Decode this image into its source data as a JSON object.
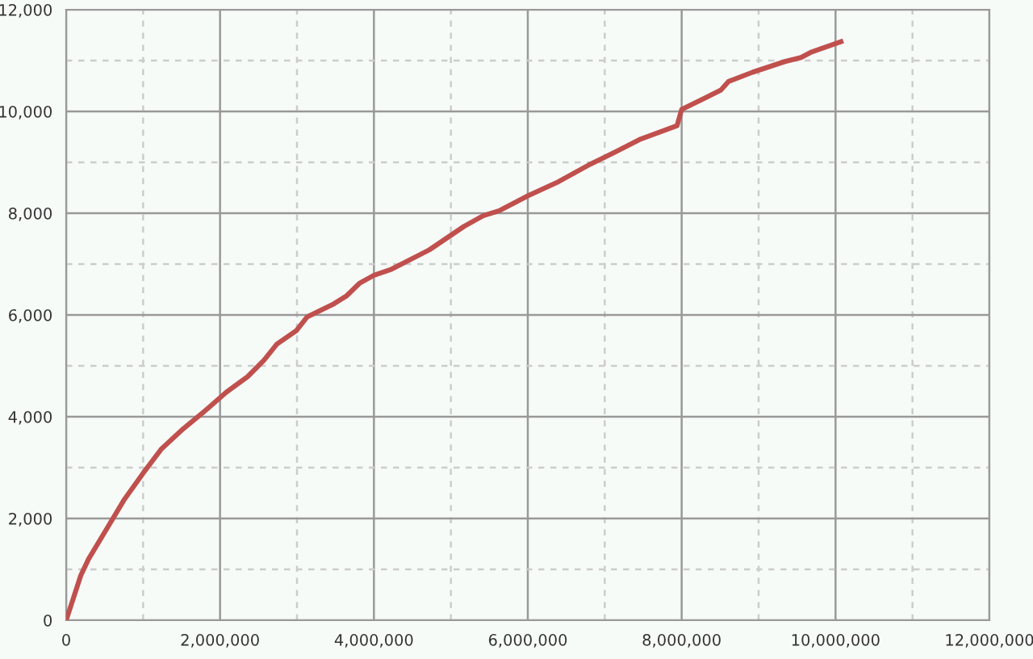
{
  "chart_data": {
    "type": "line",
    "color": "#c0504d",
    "grid": true,
    "marker": "none",
    "line_style": "solid",
    "x": [
      0,
      190000,
      290000,
      540000,
      750000,
      1000000,
      1240000,
      1520000,
      1800000,
      2080000,
      2360000,
      2570000,
      2740000,
      2990000,
      3130000,
      3480000,
      3640000,
      3810000,
      4000000,
      4230000,
      4720000,
      5170000,
      5420000,
      5630000,
      6000000,
      6400000,
      6820000,
      7120000,
      7470000,
      7940000,
      8000000,
      8300000,
      8510000,
      8610000,
      8920000,
      9340000,
      9550000,
      9690000,
      10070000
    ],
    "values": [
      0,
      880,
      1200,
      1830,
      2360,
      2890,
      3370,
      3760,
      4110,
      4480,
      4790,
      5110,
      5430,
      5690,
      5960,
      6220,
      6370,
      6620,
      6780,
      6900,
      7280,
      7740,
      7950,
      8050,
      8340,
      8620,
      8970,
      9190,
      9460,
      9720,
      10040,
      10260,
      10420,
      10590,
      10770,
      10980,
      11060,
      11170,
      11370
    ],
    "xlim": [
      0,
      12000000
    ],
    "ylim": [
      0,
      12000
    ],
    "xticks": [
      {
        "value": 0,
        "label": "0"
      },
      {
        "value": 1000000,
        "label": null
      },
      {
        "value": 2000000,
        "label": "2,000,000"
      },
      {
        "value": 3000000,
        "label": null
      },
      {
        "value": 4000000,
        "label": "4,000,000"
      },
      {
        "value": 5000000,
        "label": null
      },
      {
        "value": 6000000,
        "label": "6,000,000"
      },
      {
        "value": 7000000,
        "label": null
      },
      {
        "value": 8000000,
        "label": "8,000,000"
      },
      {
        "value": 9000000,
        "label": null
      },
      {
        "value": 10000000,
        "label": "10,000,000"
      },
      {
        "value": 11000000,
        "label": null
      },
      {
        "value": 12000000,
        "label": "12,000,000"
      }
    ],
    "yticks": [
      {
        "value": 0,
        "label": "0"
      },
      {
        "value": 1000,
        "label": null
      },
      {
        "value": 2000,
        "label": "2,000"
      },
      {
        "value": 3000,
        "label": null
      },
      {
        "value": 4000,
        "label": "4,000"
      },
      {
        "value": 5000,
        "label": null
      },
      {
        "value": 6000,
        "label": "6,000"
      },
      {
        "value": 7000,
        "label": null
      },
      {
        "value": 8000,
        "label": "8,000"
      },
      {
        "value": 9000,
        "label": null
      },
      {
        "value": 10000,
        "label": "10,000"
      },
      {
        "value": 11000,
        "label": null
      },
      {
        "value": 12000,
        "label": "12,000"
      }
    ]
  }
}
